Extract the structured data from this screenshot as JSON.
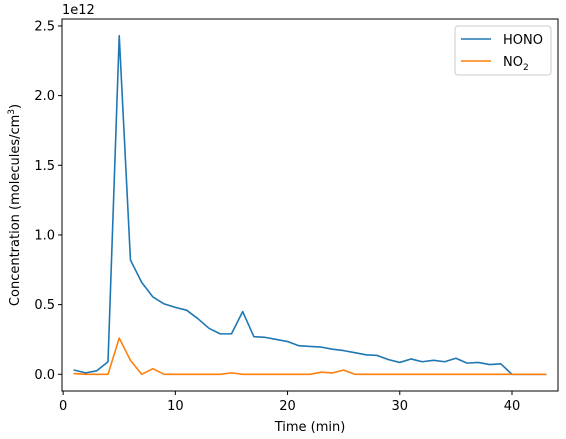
{
  "chart_data": {
    "type": "line",
    "title": "",
    "xlabel": "Time (min)",
    "ylabel": "Concentration (molecules/cm",
    "ylabel_sup": "3",
    "ylabel_close": ")",
    "y_offset_text": "1e12",
    "xlim": [
      -0.1,
      44.1
    ],
    "ylim": [
      -0.12,
      2.55
    ],
    "y_scale_factor": 1000000000000.0,
    "x_ticks": [
      0,
      10,
      20,
      30,
      40
    ],
    "x_tick_labels": [
      "0",
      "10",
      "20",
      "30",
      "40"
    ],
    "y_ticks": [
      0.0,
      0.5,
      1.0,
      1.5,
      2.0,
      2.5
    ],
    "y_tick_labels": [
      "0.0",
      "0.5",
      "1.0",
      "1.5",
      "2.0",
      "2.5"
    ],
    "grid": false,
    "legend_position": "top-right",
    "x": [
      1,
      2,
      3,
      4,
      5,
      6,
      7,
      8,
      9,
      10,
      11,
      12,
      13,
      14,
      15,
      16,
      17,
      18,
      19,
      20,
      21,
      22,
      23,
      24,
      25,
      26,
      27,
      28,
      29,
      30,
      31,
      32,
      33,
      34,
      35,
      36,
      37,
      38,
      39,
      40,
      41,
      42,
      43
    ],
    "series": [
      {
        "name": "HONO",
        "color": "#1f77b4",
        "values": [
          0.03,
          0.01,
          0.025,
          0.09,
          2.43,
          0.82,
          0.66,
          0.555,
          0.505,
          0.48,
          0.46,
          0.4,
          0.33,
          0.29,
          0.29,
          0.45,
          0.27,
          0.265,
          0.25,
          0.235,
          0.205,
          0.2,
          0.195,
          0.18,
          0.17,
          0.155,
          0.14,
          0.135,
          0.105,
          0.085,
          0.11,
          0.09,
          0.1,
          0.09,
          0.115,
          0.08,
          0.085,
          0.07,
          0.075,
          0.0,
          0.0,
          0.0,
          0.0
        ]
      },
      {
        "name": "NO",
        "name_sub": "2",
        "color": "#ff7f0e",
        "values": [
          0.005,
          0.0,
          0.0,
          0.0,
          0.26,
          0.1,
          0.0,
          0.04,
          0.0,
          0.0,
          0.0,
          0.0,
          0.0,
          0.0,
          0.01,
          0.0,
          0.0,
          0.0,
          0.0,
          0.0,
          0.0,
          0.0,
          0.015,
          0.01,
          0.03,
          0.0,
          0.0,
          0.0,
          0.0,
          0.0,
          0.0,
          0.0,
          0.0,
          0.0,
          0.0,
          0.0,
          0.0,
          0.0,
          0.0,
          0.0,
          0.0,
          0.0,
          0.0
        ]
      }
    ]
  }
}
